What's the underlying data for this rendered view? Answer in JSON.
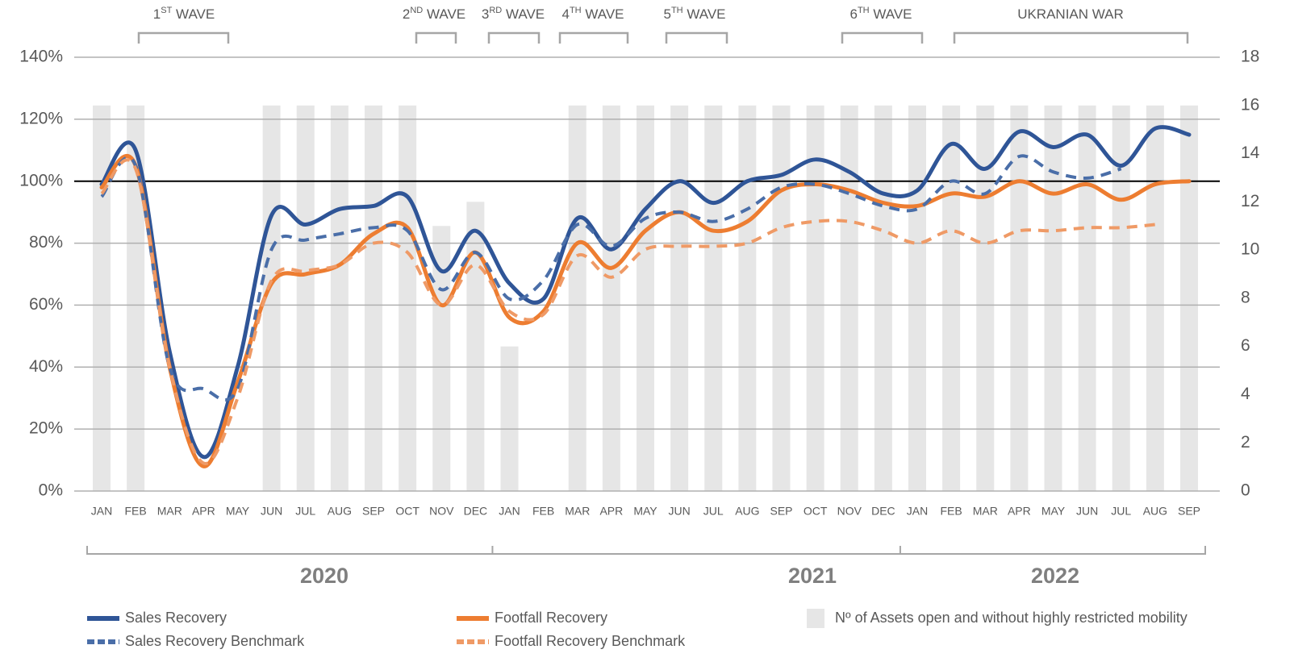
{
  "chart_data": {
    "type": "bar-line",
    "categories": [
      "JAN",
      "FEB",
      "MAR",
      "APR",
      "MAY",
      "JUN",
      "JUL",
      "AUG",
      "SEP",
      "OCT",
      "NOV",
      "DEC",
      "JAN",
      "FEB",
      "MAR",
      "APR",
      "MAY",
      "JUN",
      "JUL",
      "AUG",
      "SEP",
      "OCT",
      "NOV",
      "DEC",
      "JAN",
      "FEB",
      "MAR",
      "APR",
      "MAY",
      "JUN",
      "JUL",
      "AUG",
      "SEP"
    ],
    "year_groups": [
      {
        "label": "2020",
        "count": 12
      },
      {
        "label": "2021",
        "count": 12
      },
      {
        "label": "2022",
        "count": 9
      }
    ],
    "annotations": [
      {
        "number": "1",
        "suffix": "ST",
        "text": "WAVE"
      },
      {
        "number": "2",
        "suffix": "ND",
        "text": "WAVE"
      },
      {
        "number": "3",
        "suffix": "RD",
        "text": "WAVE"
      },
      {
        "number": "4",
        "suffix": "TH",
        "text": "WAVE"
      },
      {
        "number": "5",
        "suffix": "TH",
        "text": "WAVE"
      },
      {
        "number": "6",
        "suffix": "TH",
        "text": "WAVE"
      },
      {
        "text": "UKRANIAN WAR"
      }
    ],
    "ylim": [
      0,
      140
    ],
    "yticks": [
      {
        "value": 0,
        "label": "0%"
      },
      {
        "value": 20,
        "label": "20%"
      },
      {
        "value": 40,
        "label": "40%"
      },
      {
        "value": 60,
        "label": "60%"
      },
      {
        "value": 80,
        "label": "80%"
      },
      {
        "value": 100,
        "label": "100%"
      },
      {
        "value": 120,
        "label": "120%"
      },
      {
        "value": 140,
        "label": "140%"
      }
    ],
    "y2lim": [
      0,
      18
    ],
    "y2ticks": [
      0,
      2,
      4,
      6,
      8,
      10,
      12,
      14,
      16,
      18
    ],
    "grid": true,
    "reference_line": 100,
    "series": [
      {
        "name": "Nº of Assets open and without highly restricted mobility",
        "type": "bar",
        "axis": "y2",
        "color": "#e6e6e6",
        "values": [
          16,
          16,
          0,
          0,
          0,
          16,
          16,
          16,
          16,
          16,
          11,
          12,
          6,
          0,
          16,
          16,
          16,
          16,
          16,
          16,
          16,
          16,
          16,
          16,
          16,
          16,
          16,
          16,
          16,
          16,
          16,
          16,
          16
        ]
      },
      {
        "name": "Sales Recovery",
        "type": "line",
        "color": "#2f5597",
        "dashed": false,
        "values": [
          99,
          110,
          45,
          11,
          40,
          89,
          86,
          91,
          92,
          95,
          71,
          84,
          67,
          62,
          88,
          78,
          91,
          100,
          93,
          100,
          102,
          107,
          103,
          96,
          97,
          112,
          104,
          116,
          111,
          115,
          105,
          117,
          115
        ]
      },
      {
        "name": "Footfall Recovery",
        "type": "line",
        "color": "#ed7d31",
        "dashed": false,
        "values": [
          98,
          105,
          40,
          8,
          35,
          67,
          70,
          73,
          83,
          85,
          60,
          77,
          56,
          58,
          80,
          72,
          84,
          90,
          84,
          87,
          97,
          99,
          97,
          93,
          92,
          96,
          95,
          100,
          96,
          99,
          94,
          99,
          100
        ]
      },
      {
        "name": "Sales Recovery Benchmark",
        "type": "line",
        "color": "#4a6ea8",
        "dashed": true,
        "values": [
          95,
          105,
          40,
          33,
          33,
          78,
          81,
          83,
          85,
          84,
          65,
          77,
          62,
          68,
          86,
          79,
          88,
          90,
          87,
          91,
          98,
          99,
          96,
          92,
          91,
          100,
          96,
          108,
          103,
          101,
          104,
          null,
          null
        ]
      },
      {
        "name": "Footfall Recovery Benchmark",
        "type": "line",
        "color": "#ef9a66",
        "dashed": true,
        "values": [
          96,
          104,
          40,
          9,
          30,
          68,
          71,
          73,
          80,
          77,
          60,
          73,
          58,
          57,
          76,
          69,
          78,
          79,
          79,
          80,
          85,
          87,
          87,
          84,
          80,
          84,
          80,
          84,
          84,
          85,
          85,
          86,
          null
        ]
      }
    ]
  }
}
